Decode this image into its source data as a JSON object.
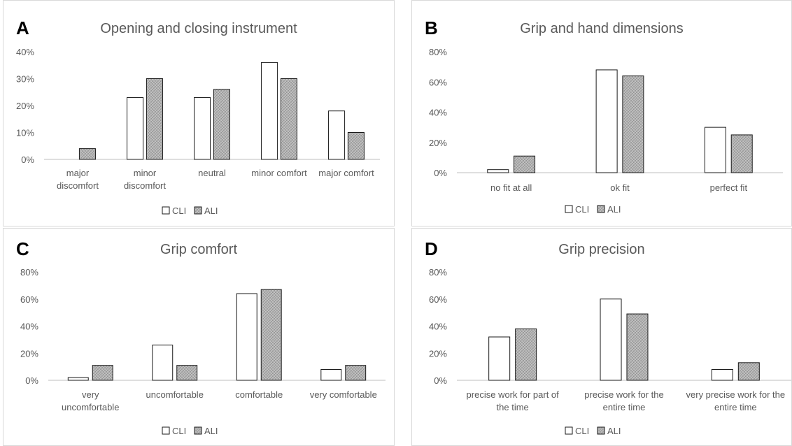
{
  "colors": {
    "cli_fill": "#ffffff",
    "ali_fill": "#b3b3b3",
    "bar_stroke": "#1a1a1a",
    "axis": "#bfbfbf",
    "tick_text": "#595959",
    "title_text": "#595959"
  },
  "chart_data": [
    {
      "panel_letter": "A",
      "type": "bar",
      "title": "Opening and closing instrument",
      "categories": [
        [
          "major",
          "discomfort"
        ],
        [
          "minor",
          "discomfort"
        ],
        [
          "neutral"
        ],
        [
          "minor comfort"
        ],
        [
          "major comfort"
        ]
      ],
      "series": [
        {
          "name": "CLI",
          "values": [
            0,
            23,
            23,
            36,
            18
          ]
        },
        {
          "name": "ALI",
          "values": [
            4,
            30,
            26,
            30,
            10
          ]
        }
      ],
      "ylim": [
        0,
        40
      ],
      "yticks": [
        "0%",
        "10%",
        "20%",
        "30%",
        "40%"
      ],
      "grid": false,
      "legend": "bottom"
    },
    {
      "panel_letter": "B",
      "type": "bar",
      "title": "Grip and hand dimensions",
      "categories": [
        [
          "no fit at all"
        ],
        [
          "ok fit"
        ],
        [
          "perfect fit"
        ]
      ],
      "series": [
        {
          "name": "CLI",
          "values": [
            2,
            68,
            30
          ]
        },
        {
          "name": "ALI",
          "values": [
            11,
            64,
            25
          ]
        }
      ],
      "ylim": [
        0,
        80
      ],
      "yticks": [
        "0%",
        "20%",
        "40%",
        "60%",
        "80%"
      ],
      "grid": false,
      "legend": "bottom"
    },
    {
      "panel_letter": "C",
      "type": "bar",
      "title": "Grip comfort",
      "categories": [
        [
          "very",
          "uncomfortable"
        ],
        [
          "uncomfortable"
        ],
        [
          "comfortable"
        ],
        [
          "very comfortable"
        ]
      ],
      "series": [
        {
          "name": "CLI",
          "values": [
            2,
            26,
            64,
            8
          ]
        },
        {
          "name": "ALI",
          "values": [
            11,
            11,
            67,
            11
          ]
        }
      ],
      "ylim": [
        0,
        80
      ],
      "yticks": [
        "0%",
        "20%",
        "40%",
        "60%",
        "80%"
      ],
      "grid": false,
      "legend": "bottom"
    },
    {
      "panel_letter": "D",
      "type": "bar",
      "title": "Grip precision",
      "categories": [
        [
          "precise work for part of",
          "the time"
        ],
        [
          "precise work for the",
          "entire time"
        ],
        [
          "very precise work for the",
          "entire time"
        ]
      ],
      "series": [
        {
          "name": "CLI",
          "values": [
            32,
            60,
            8
          ]
        },
        {
          "name": "ALI",
          "values": [
            38,
            49,
            13
          ]
        }
      ],
      "ylim": [
        0,
        80
      ],
      "yticks": [
        "0%",
        "20%",
        "40%",
        "60%",
        "80%"
      ],
      "grid": false,
      "legend": "bottom"
    }
  ]
}
